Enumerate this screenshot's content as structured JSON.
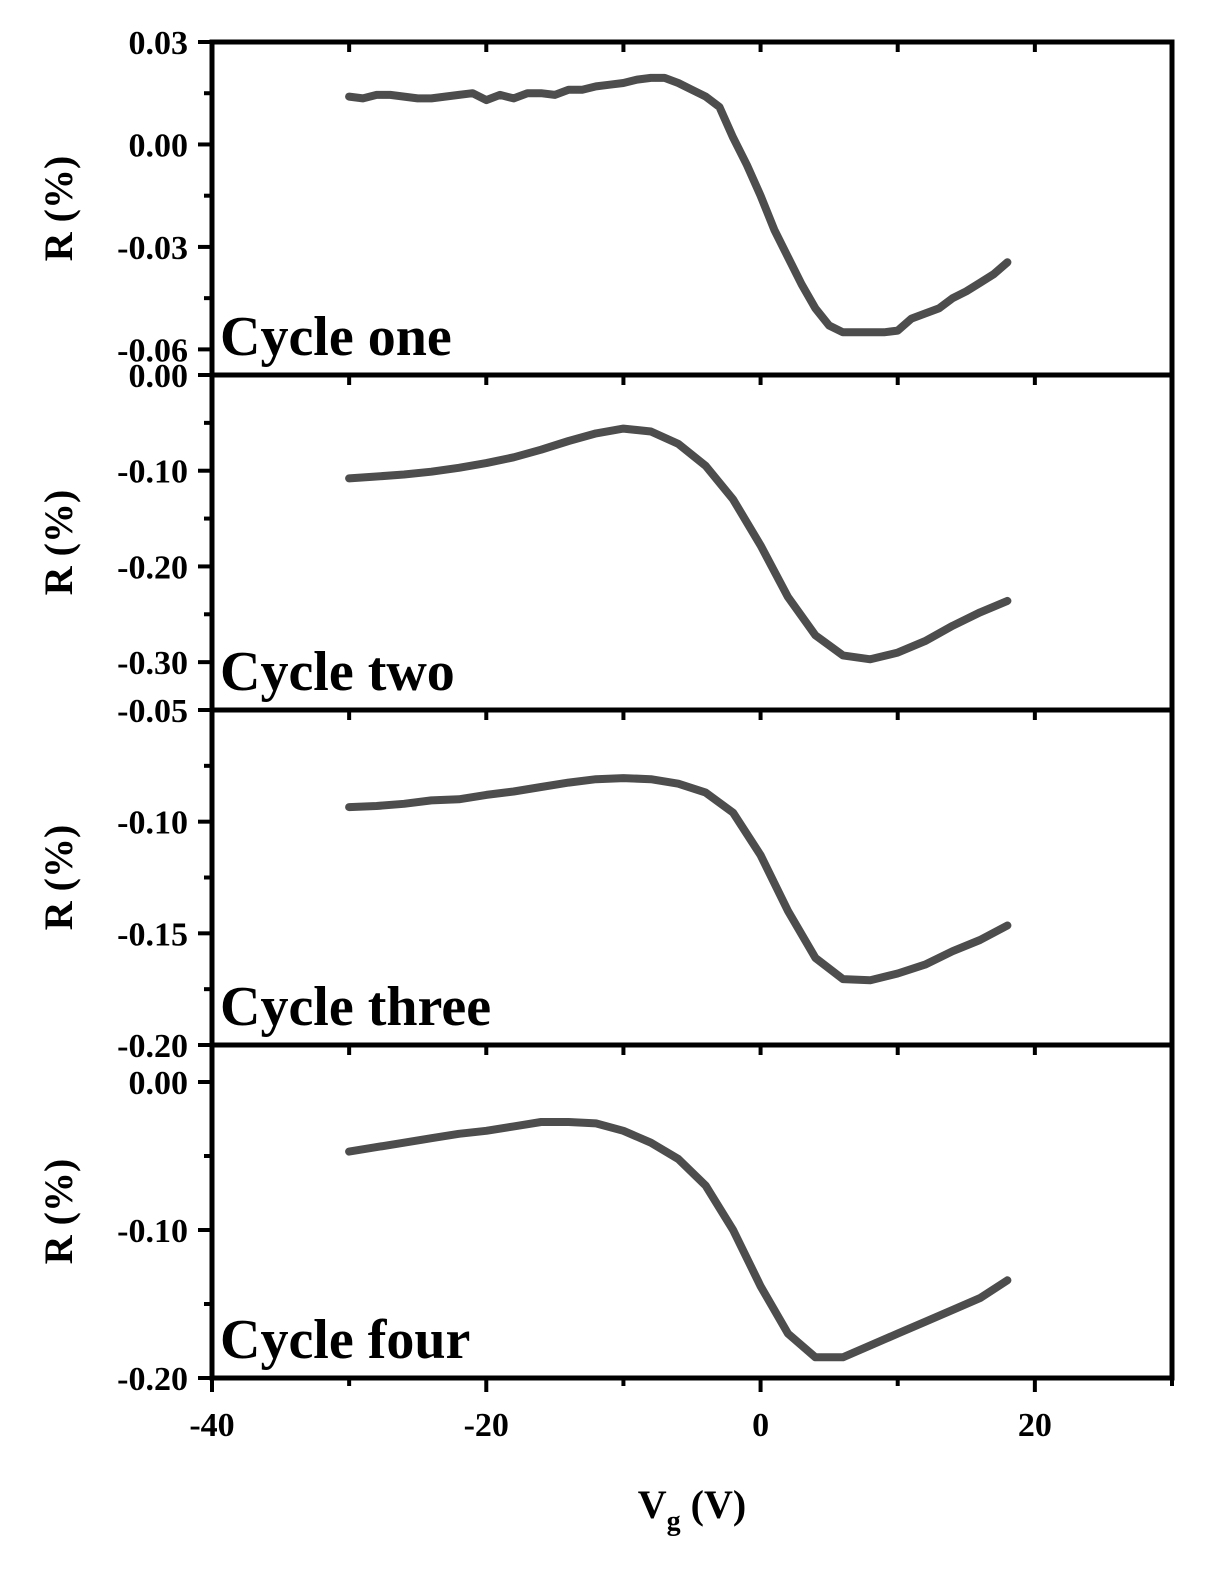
{
  "colors": {
    "line": "#4d4d4d",
    "axis": "#000000",
    "background": "#ffffff"
  },
  "x_axis": {
    "label_main": "V",
    "label_sub": "g",
    "label_unit": " (V)",
    "range": [
      -40,
      30
    ],
    "ticks": [
      -40,
      -20,
      0,
      20
    ],
    "tick_labels": [
      "-40",
      "-20",
      "0",
      "20"
    ]
  },
  "chart_data": [
    {
      "type": "line",
      "panel_label": "Cycle one",
      "ylabel": "R (%)",
      "xlim": [
        -40,
        30
      ],
      "ylim": [
        -0.0675,
        0.03
      ],
      "yticks": [
        0.03,
        0.0,
        -0.03,
        -0.06
      ],
      "ytick_labels": [
        "0.03",
        "0.00",
        "-0.03",
        "-0.06"
      ],
      "series": [
        {
          "x": [
            -30,
            -29,
            -28,
            -27,
            -26,
            -25,
            -24,
            -23,
            -22,
            -21,
            -20,
            -19,
            -18,
            -17,
            -16,
            -15,
            -14,
            -13,
            -12,
            -11,
            -10,
            -9,
            -8,
            -7,
            -6,
            -5,
            -4,
            -3,
            -2,
            -1,
            0,
            1,
            2,
            3,
            4,
            5,
            6,
            7,
            8,
            9,
            10,
            11,
            12,
            13,
            14,
            15,
            16,
            17,
            18
          ],
          "y": [
            0.014,
            0.0135,
            0.0145,
            0.0145,
            0.014,
            0.0135,
            0.0135,
            0.014,
            0.0145,
            0.015,
            0.013,
            0.0145,
            0.0135,
            0.015,
            0.015,
            0.0145,
            0.016,
            0.016,
            0.017,
            0.0175,
            0.018,
            0.019,
            0.0195,
            0.0195,
            0.018,
            0.016,
            0.014,
            0.011,
            0.002,
            -0.006,
            -0.015,
            -0.025,
            -0.033,
            -0.041,
            -0.048,
            -0.053,
            -0.055,
            -0.055,
            -0.055,
            -0.055,
            -0.0545,
            -0.051,
            -0.0495,
            -0.048,
            -0.045,
            -0.043,
            -0.0405,
            -0.038,
            -0.0345
          ]
        }
      ]
    },
    {
      "type": "line",
      "panel_label": "Cycle two",
      "ylabel": "R (%)",
      "xlim": [
        -40,
        30
      ],
      "ylim": [
        -0.35,
        0.0
      ],
      "yticks": [
        0.0,
        -0.1,
        -0.2,
        -0.3
      ],
      "ytick_labels": [
        "0.00",
        "-0.10",
        "-0.20",
        "-0.30"
      ],
      "series": [
        {
          "x": [
            -30,
            -28,
            -26,
            -24,
            -22,
            -20,
            -18,
            -16,
            -14,
            -12,
            -10,
            -8,
            -6,
            -4,
            -2,
            0,
            2,
            4,
            6,
            8,
            10,
            12,
            14,
            16,
            18
          ],
          "y": [
            -0.108,
            -0.106,
            -0.104,
            -0.101,
            -0.097,
            -0.092,
            -0.086,
            -0.078,
            -0.069,
            -0.061,
            -0.056,
            -0.059,
            -0.072,
            -0.095,
            -0.13,
            -0.178,
            -0.232,
            -0.272,
            -0.293,
            -0.297,
            -0.29,
            -0.278,
            -0.262,
            -0.248,
            -0.236
          ]
        }
      ]
    },
    {
      "type": "line",
      "panel_label": "Cycle three",
      "ylabel": "R (%)",
      "xlim": [
        -40,
        30
      ],
      "ylim": [
        -0.2,
        -0.05
      ],
      "yticks": [
        -0.05,
        -0.1,
        -0.15,
        -0.2
      ],
      "ytick_labels": [
        "-0.05",
        "-0.10",
        "-0.15",
        "-0.20"
      ],
      "series": [
        {
          "x": [
            -30,
            -28,
            -26,
            -24,
            -22,
            -20,
            -18,
            -16,
            -14,
            -12,
            -10,
            -8,
            -6,
            -4,
            -2,
            0,
            2,
            4,
            6,
            8,
            10,
            12,
            14,
            16,
            18
          ],
          "y": [
            -0.0935,
            -0.093,
            -0.092,
            -0.0905,
            -0.09,
            -0.088,
            -0.0865,
            -0.0845,
            -0.0825,
            -0.081,
            -0.0805,
            -0.081,
            -0.083,
            -0.087,
            -0.096,
            -0.115,
            -0.14,
            -0.161,
            -0.1705,
            -0.171,
            -0.168,
            -0.164,
            -0.158,
            -0.153,
            -0.1465
          ]
        }
      ]
    },
    {
      "type": "line",
      "panel_label": "Cycle four",
      "ylabel": "R (%)",
      "xlim": [
        -40,
        30
      ],
      "ylim": [
        -0.2,
        0.025
      ],
      "yticks": [
        0.0,
        -0.1,
        -0.2
      ],
      "ytick_labels": [
        "0.00",
        "-0.10",
        "-0.20"
      ],
      "series": [
        {
          "x": [
            -30,
            -28,
            -26,
            -24,
            -22,
            -20,
            -18,
            -16,
            -14,
            -12,
            -10,
            -8,
            -6,
            -4,
            -2,
            0,
            2,
            4,
            6,
            8,
            10,
            12,
            14,
            16,
            18
          ],
          "y": [
            -0.047,
            -0.044,
            -0.041,
            -0.038,
            -0.035,
            -0.033,
            -0.03,
            -0.027,
            -0.027,
            -0.028,
            -0.033,
            -0.041,
            -0.052,
            -0.07,
            -0.1,
            -0.138,
            -0.17,
            -0.186,
            -0.186,
            -0.178,
            -0.17,
            -0.162,
            -0.154,
            -0.146,
            -0.134
          ]
        }
      ]
    }
  ]
}
